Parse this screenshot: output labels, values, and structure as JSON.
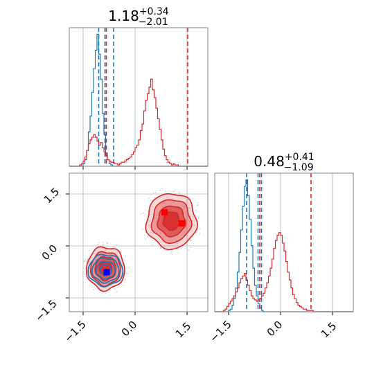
{
  "chart_data": [
    {
      "type": "histogram",
      "panel": "top-left (marginal of parameter 1)",
      "title": {
        "value": "1.18",
        "sup": "+0.34",
        "sub": "−2.01"
      },
      "xlim": [
        -1.9,
        2.1
      ],
      "ylim": [
        0,
        1.05
      ],
      "grid_x_ticks": [
        -1.5,
        0.0,
        1.5
      ],
      "series": [
        {
          "color": "#1f77b4",
          "bin_width": 0.05,
          "bins_start": -1.9,
          "values": [
            0,
            0,
            0,
            0,
            0,
            0,
            0,
            0,
            0.02,
            0.05,
            0.12,
            0.26,
            0.38,
            0.56,
            0.74,
            0.88,
            1.0,
            0.85,
            0.66,
            0.4,
            0.24,
            0.1,
            0.05,
            0.02,
            0.01,
            0,
            0,
            0,
            0,
            0,
            0,
            0,
            0,
            0,
            0,
            0,
            0,
            0,
            0,
            0,
            0,
            0,
            0,
            0,
            0,
            0,
            0,
            0,
            0,
            0,
            0,
            0,
            0,
            0,
            0,
            0,
            0,
            0,
            0,
            0,
            0,
            0,
            0,
            0,
            0,
            0,
            0,
            0,
            0,
            0,
            0,
            0,
            0,
            0,
            0,
            0,
            0,
            0,
            0,
            0
          ],
          "quantile_lines": [
            -1.05,
            -0.87,
            -0.62
          ]
        },
        {
          "color": "#d62728",
          "bin_width": 0.05,
          "bins_start": -1.9,
          "values": [
            0,
            0,
            0,
            0,
            0,
            0,
            0.01,
            0.02,
            0.04,
            0.07,
            0.12,
            0.17,
            0.2,
            0.22,
            0.24,
            0.22,
            0.19,
            0.16,
            0.18,
            0.14,
            0.11,
            0.08,
            0.05,
            0.04,
            0.03,
            0.03,
            0.02,
            0.02,
            0.01,
            0.02,
            0.03,
            0.03,
            0.04,
            0.05,
            0.06,
            0.07,
            0.09,
            0.11,
            0.14,
            0.16,
            0.2,
            0.27,
            0.32,
            0.42,
            0.5,
            0.55,
            0.6,
            0.66,
            0.58,
            0.52,
            0.44,
            0.36,
            0.28,
            0.2,
            0.13,
            0.08,
            0.05,
            0.03,
            0.02,
            0.01,
            0.02,
            0.01,
            0.01,
            0,
            0,
            0,
            0,
            0,
            0,
            0,
            0,
            0,
            0,
            0,
            0,
            0,
            0,
            0,
            0,
            0
          ],
          "quantile_lines": [
            -0.83,
            1.52
          ]
        }
      ]
    },
    {
      "type": "contour",
      "panel": "bottom-left (2D joint)",
      "xlim": [
        -1.9,
        2.1
      ],
      "ylim": [
        -1.9,
        2.1
      ],
      "x_ticks": [
        "−1.5",
        "0.0",
        "1.5"
      ],
      "y_ticks": [
        "−1.5",
        "0.0",
        "1.5"
      ],
      "x_tick_values": [
        -1.5,
        0.0,
        1.5
      ],
      "y_tick_values": [
        -1.5,
        0.0,
        1.5
      ],
      "series": [
        {
          "color": "#d62728",
          "blobs": [
            {
              "cx": -0.85,
              "cy": -0.65,
              "rx": 0.55,
              "ry": 0.62
            },
            {
              "cx": 1.05,
              "cy": 0.72,
              "rx": 0.72,
              "ry": 0.8
            }
          ]
        },
        {
          "color": "#1f77b4",
          "blobs": [
            {
              "cx": -0.85,
              "cy": -0.7,
              "rx": 0.5,
              "ry": 0.45
            }
          ]
        }
      ],
      "markers": [
        {
          "x": -0.82,
          "y": -0.76,
          "color": "#0000ff"
        },
        {
          "x": 0.85,
          "y": 0.97,
          "color": "#ff0000"
        },
        {
          "x": 1.35,
          "y": 0.65,
          "color": "#ff0000"
        }
      ]
    },
    {
      "type": "histogram",
      "panel": "bottom-right (marginal of parameter 2)",
      "title": {
        "value": "0.48",
        "sup": "+0.41",
        "sub": "−1.09"
      },
      "xlim": [
        -1.9,
        2.1
      ],
      "ylim": [
        0,
        1.05
      ],
      "x_ticks": [
        "−1.5",
        "0.0",
        "1.5"
      ],
      "x_tick_values": [
        -1.5,
        0.0,
        1.5
      ],
      "series": [
        {
          "color": "#1f77b4",
          "bin_width": 0.05,
          "bins_start": -1.9,
          "values": [
            0,
            0,
            0,
            0,
            0,
            0,
            0,
            0,
            0.01,
            0.02,
            0.05,
            0.1,
            0.18,
            0.3,
            0.45,
            0.62,
            0.8,
            0.95,
            1.0,
            0.88,
            0.7,
            0.5,
            0.33,
            0.2,
            0.12,
            0.06,
            0.03,
            0.01,
            0,
            0,
            0,
            0,
            0,
            0,
            0,
            0,
            0,
            0,
            0,
            0,
            0,
            0,
            0,
            0,
            0,
            0,
            0,
            0,
            0,
            0,
            0,
            0,
            0,
            0,
            0,
            0,
            0,
            0,
            0,
            0,
            0,
            0,
            0,
            0,
            0,
            0,
            0,
            0,
            0,
            0,
            0,
            0,
            0,
            0,
            0,
            0,
            0,
            0,
            0,
            0
          ],
          "quantile_lines": [
            -0.98,
            -0.65,
            -0.55
          ]
        },
        {
          "color": "#d62728",
          "bin_width": 0.05,
          "bins_start": -1.9,
          "values": [
            0,
            0,
            0,
            0,
            0,
            0.01,
            0.02,
            0.04,
            0.06,
            0.08,
            0.1,
            0.12,
            0.15,
            0.18,
            0.22,
            0.25,
            0.27,
            0.29,
            0.24,
            0.2,
            0.16,
            0.12,
            0.1,
            0.09,
            0.08,
            0.09,
            0.1,
            0.12,
            0.14,
            0.18,
            0.22,
            0.27,
            0.33,
            0.4,
            0.48,
            0.54,
            0.58,
            0.6,
            0.58,
            0.52,
            0.46,
            0.38,
            0.3,
            0.24,
            0.18,
            0.13,
            0.1,
            0.07,
            0.05,
            0.04,
            0.03,
            0.02,
            0.02,
            0.01,
            0.01,
            0.01,
            0.01,
            0,
            0,
            0,
            0,
            0,
            0,
            0,
            0,
            0,
            0,
            0,
            0,
            0,
            0,
            0,
            0,
            0,
            0,
            0,
            0,
            0,
            0,
            0
          ],
          "quantile_lines": [
            -0.6,
            0.88
          ]
        }
      ]
    }
  ]
}
